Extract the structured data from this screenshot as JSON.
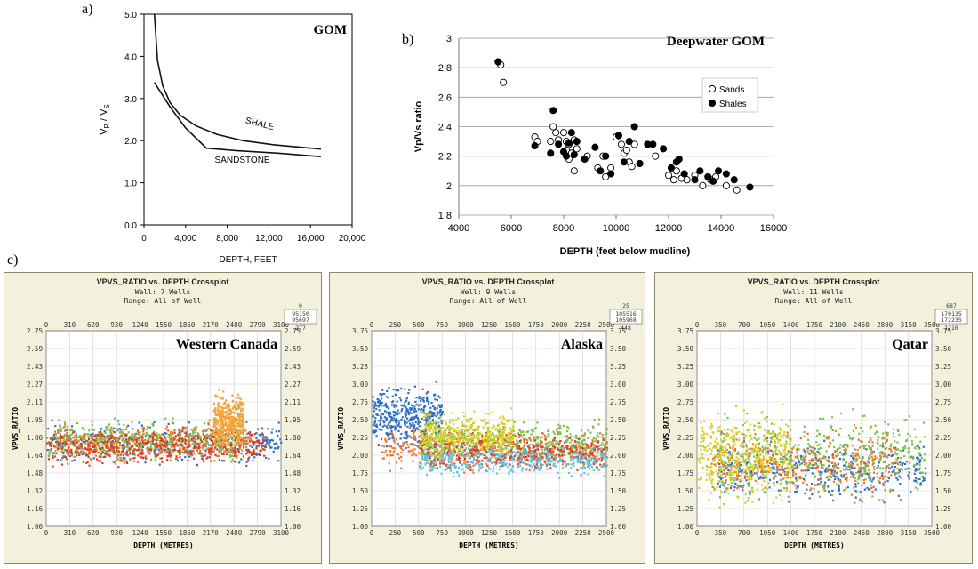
{
  "colors": {
    "panel_border": "#8a8a6a",
    "panel_bg": "#f3f1dc",
    "plot_bg": "#ffffff",
    "grid": "#cfcfcf",
    "mono_text": "#333333",
    "well_blue": "#2f6fc4",
    "well_orange": "#f0722a",
    "well_green": "#7cc243",
    "well_yellow": "#d8d01e",
    "well_red": "#e23b1e",
    "well_cyan": "#5ec4e0",
    "well_lightgreen": "#9fd36b",
    "well_amber": "#f2a43a"
  },
  "figure_labels": {
    "a": "a)",
    "b": "b)",
    "c": "c)"
  },
  "chart_data": [
    {
      "id": "a",
      "type": "line",
      "title": "GOM",
      "xlabel": "DEPTH,  FEET",
      "ylabel": "V",
      "ylabel_sub1": "P",
      "ylabel_mid": " / V",
      "ylabel_sub2": "S",
      "xlim": [
        0,
        20000
      ],
      "ylim": [
        0,
        5
      ],
      "x_ticks": [
        0,
        4000,
        8000,
        12000,
        16000,
        20000
      ],
      "x_tick_labels": [
        "0",
        "4,000",
        "8,000",
        "12,000",
        "16,000",
        "20,000"
      ],
      "y_ticks": [
        0,
        1,
        2,
        3,
        4,
        5
      ],
      "y_tick_labels": [
        "0.0",
        "1.0",
        "2.0",
        "3.0",
        "4.0",
        "5.0"
      ],
      "series": [
        {
          "name": "SHALE",
          "x": [
            1000,
            1300,
            1800,
            2500,
            3500,
            5000,
            7000,
            9500,
            12500,
            17000
          ],
          "y": [
            5.0,
            3.9,
            3.3,
            2.9,
            2.6,
            2.35,
            2.15,
            2.0,
            1.9,
            1.8
          ]
        },
        {
          "name": "SANDSTONE",
          "x": [
            1000,
            2500,
            4000,
            6000,
            9000,
            13000,
            17000
          ],
          "y": [
            3.38,
            2.8,
            2.3,
            1.82,
            1.76,
            1.7,
            1.62
          ]
        }
      ],
      "annotations": [
        "SHALE",
        "SANDSTONE"
      ]
    },
    {
      "id": "b",
      "type": "scatter",
      "title": "Deepwater GOM",
      "xlabel": "DEPTH (feet below mudline)",
      "ylabel": "Vp/Vs ratio",
      "xlim": [
        4000,
        16000
      ],
      "ylim": [
        1.8,
        3.0
      ],
      "x_tick_labels": [
        "4000",
        "6000",
        "8000",
        "10000",
        "12000",
        "14000",
        "16000"
      ],
      "y_tick_labels": [
        "1.8",
        "2",
        "2.2",
        "2.4",
        "2.6",
        "2.8",
        "3"
      ],
      "legend": [
        "Sands",
        "Shales"
      ],
      "legend_position": "right",
      "series": [
        {
          "name": "Sands",
          "points": [
            [
              5600,
              2.82
            ],
            [
              5700,
              2.7
            ],
            [
              6900,
              2.33
            ],
            [
              7000,
              2.3
            ],
            [
              7500,
              2.3
            ],
            [
              7600,
              2.4
            ],
            [
              7700,
              2.36
            ],
            [
              7800,
              2.31
            ],
            [
              8000,
              2.36
            ],
            [
              8100,
              2.3
            ],
            [
              8100,
              2.24
            ],
            [
              8200,
              2.18
            ],
            [
              8200,
              2.28
            ],
            [
              8300,
              2.22
            ],
            [
              8400,
              2.31
            ],
            [
              8500,
              2.25
            ],
            [
              8400,
              2.1
            ],
            [
              8900,
              2.2
            ],
            [
              9300,
              2.12
            ],
            [
              9500,
              2.2
            ],
            [
              9600,
              2.06
            ],
            [
              9800,
              2.12
            ],
            [
              10000,
              2.33
            ],
            [
              10200,
              2.28
            ],
            [
              10300,
              2.22
            ],
            [
              10400,
              2.24
            ],
            [
              10500,
              2.16
            ],
            [
              10600,
              2.13
            ],
            [
              10700,
              2.28
            ],
            [
              11500,
              2.2
            ],
            [
              12000,
              2.07
            ],
            [
              12200,
              2.04
            ],
            [
              12300,
              2.1
            ],
            [
              12500,
              2.05
            ],
            [
              12700,
              2.04
            ],
            [
              13000,
              2.07
            ],
            [
              13300,
              2.0
            ],
            [
              13600,
              2.04
            ],
            [
              13800,
              2.06
            ],
            [
              14200,
              2.0
            ],
            [
              14600,
              1.97
            ]
          ]
        },
        {
          "name": "Shales",
          "points": [
            [
              5500,
              2.84
            ],
            [
              6900,
              2.27
            ],
            [
              7500,
              2.22
            ],
            [
              7600,
              2.51
            ],
            [
              7800,
              2.28
            ],
            [
              8000,
              2.23
            ],
            [
              8100,
              2.2
            ],
            [
              8200,
              2.29
            ],
            [
              8300,
              2.36
            ],
            [
              8400,
              2.21
            ],
            [
              8500,
              2.3
            ],
            [
              8800,
              2.18
            ],
            [
              9200,
              2.26
            ],
            [
              9400,
              2.1
            ],
            [
              9600,
              2.2
            ],
            [
              9800,
              2.08
            ],
            [
              10100,
              2.34
            ],
            [
              10300,
              2.16
            ],
            [
              10500,
              2.3
            ],
            [
              10700,
              2.4
            ],
            [
              10900,
              2.15
            ],
            [
              11200,
              2.28
            ],
            [
              11400,
              2.28
            ],
            [
              11800,
              2.25
            ],
            [
              12100,
              2.12
            ],
            [
              12300,
              2.16
            ],
            [
              12400,
              2.18
            ],
            [
              12600,
              2.08
            ],
            [
              13000,
              2.04
            ],
            [
              13200,
              2.1
            ],
            [
              13500,
              2.06
            ],
            [
              13700,
              2.03
            ],
            [
              13900,
              2.1
            ],
            [
              14200,
              2.08
            ],
            [
              14500,
              2.04
            ],
            [
              15100,
              1.99
            ]
          ]
        }
      ]
    },
    {
      "id": "c1",
      "type": "scatter",
      "title": "VPVS_RATIO vs. DEPTH Crossplot",
      "subtitle_well": "Well: 7 Wells",
      "subtitle_range": "Range: All of Well",
      "region": "Western Canada",
      "xlabel": "DEPTH  (METRES)",
      "ylabel": "VPVS_RATIO",
      "xlim": [
        0,
        3100
      ],
      "ylim": [
        1.0,
        2.75
      ],
      "x_tick_labels": [
        "0",
        "310",
        "620",
        "930",
        "1240",
        "1550",
        "1860",
        "2170",
        "2480",
        "2790",
        "3100"
      ],
      "y_tick_labels": [
        "1.00",
        "1.16",
        "1.32",
        "1.48",
        "1.64",
        "1.80",
        "1.95",
        "2.11",
        "2.27",
        "2.43",
        "2.59",
        "2.75"
      ],
      "stats_box": {
        "top": "0",
        "line1": "95150",
        "line2": "95697",
        "bottom": "277"
      },
      "series": [
        {
          "name": "blue well",
          "depth_range": [
            0,
            3100
          ],
          "ratio_center": 1.75,
          "ratio_spread": 0.15
        },
        {
          "name": "orange well",
          "depth_range": [
            100,
            2700
          ],
          "ratio_center": 1.75,
          "ratio_spread": 0.14
        },
        {
          "name": "green well",
          "depth_range": [
            0,
            2600
          ],
          "ratio_center": 1.78,
          "ratio_spread": 0.14
        },
        {
          "name": "red well",
          "depth_range": [
            0,
            2900
          ],
          "ratio_center": 1.72,
          "ratio_spread": 0.13
        },
        {
          "name": "amber well",
          "depth_range": [
            2200,
            2600
          ],
          "ratio_center": 1.95,
          "ratio_spread": 0.2
        }
      ]
    },
    {
      "id": "c2",
      "type": "scatter",
      "title": "VPVS_RATIO vs. DEPTH Crossplot",
      "subtitle_well": "Well: 9 Wells",
      "subtitle_range": "Range: All of Well",
      "region": "Alaska",
      "xlabel": "DEPTH  (METRES)",
      "ylabel": "VPVS_RATIO",
      "xlim": [
        0,
        2500
      ],
      "ylim": [
        1.0,
        3.75
      ],
      "x_tick_labels": [
        "0",
        "250",
        "500",
        "750",
        "1000",
        "1250",
        "1500",
        "1750",
        "2000",
        "2250",
        "2500"
      ],
      "y_tick_labels": [
        "1.00",
        "1.25",
        "1.50",
        "1.75",
        "2.00",
        "2.25",
        "2.50",
        "2.75",
        "3.00",
        "3.25",
        "3.50",
        "3.75"
      ],
      "stats_box": {
        "top": "25",
        "line1": "105516",
        "line2": "105968",
        "bottom": "448"
      },
      "series": [
        {
          "name": "blue well",
          "depth_range": [
            0,
            750
          ],
          "ratio_center": 2.55,
          "ratio_spread": 0.35
        },
        {
          "name": "orange well",
          "depth_range": [
            100,
            2500
          ],
          "ratio_center": 2.1,
          "ratio_spread": 0.25
        },
        {
          "name": "green well",
          "depth_range": [
            500,
            2500
          ],
          "ratio_center": 2.2,
          "ratio_spread": 0.22
        },
        {
          "name": "red well",
          "depth_range": [
            500,
            2500
          ],
          "ratio_center": 2.05,
          "ratio_spread": 0.2
        },
        {
          "name": "cyan well",
          "depth_range": [
            500,
            2500
          ],
          "ratio_center": 1.95,
          "ratio_spread": 0.2
        },
        {
          "name": "yellow well",
          "depth_range": [
            500,
            1500
          ],
          "ratio_center": 2.3,
          "ratio_spread": 0.25
        }
      ]
    },
    {
      "id": "c3",
      "type": "scatter",
      "title": "VPVS_RATIO vs. DEPTH Crossplot",
      "subtitle_well": "Well: 11 Wells",
      "subtitle_range": "Range: All of Well",
      "region": "Qatar",
      "xlabel": "DEPTH  (METRES)",
      "ylabel": "VPVS_RATIO",
      "xlim": [
        0,
        3500
      ],
      "ylim": [
        1.0,
        3.75
      ],
      "x_tick_labels": [
        "0",
        "350",
        "700",
        "1050",
        "1400",
        "1750",
        "2100",
        "2450",
        "2800",
        "3150",
        "3500"
      ],
      "y_tick_labels": [
        "1.00",
        "1.25",
        "1.50",
        "1.75",
        "2.00",
        "2.25",
        "2.50",
        "2.75",
        "3.00",
        "3.25",
        "3.50",
        "3.75"
      ],
      "stats_box": {
        "top": "687",
        "line1": "170135",
        "line2": "172235",
        "bottom": "1210"
      },
      "series": [
        {
          "name": "blue well",
          "depth_range": [
            300,
            3400
          ],
          "ratio_center": 1.8,
          "ratio_spread": 0.35
        },
        {
          "name": "orange well",
          "depth_range": [
            200,
            3000
          ],
          "ratio_center": 1.9,
          "ratio_spread": 0.35
        },
        {
          "name": "green well",
          "depth_range": [
            300,
            3400
          ],
          "ratio_center": 2.0,
          "ratio_spread": 0.5
        },
        {
          "name": "yellow well",
          "depth_range": [
            0,
            1400
          ],
          "ratio_center": 2.0,
          "ratio_spread": 0.5
        }
      ]
    }
  ]
}
